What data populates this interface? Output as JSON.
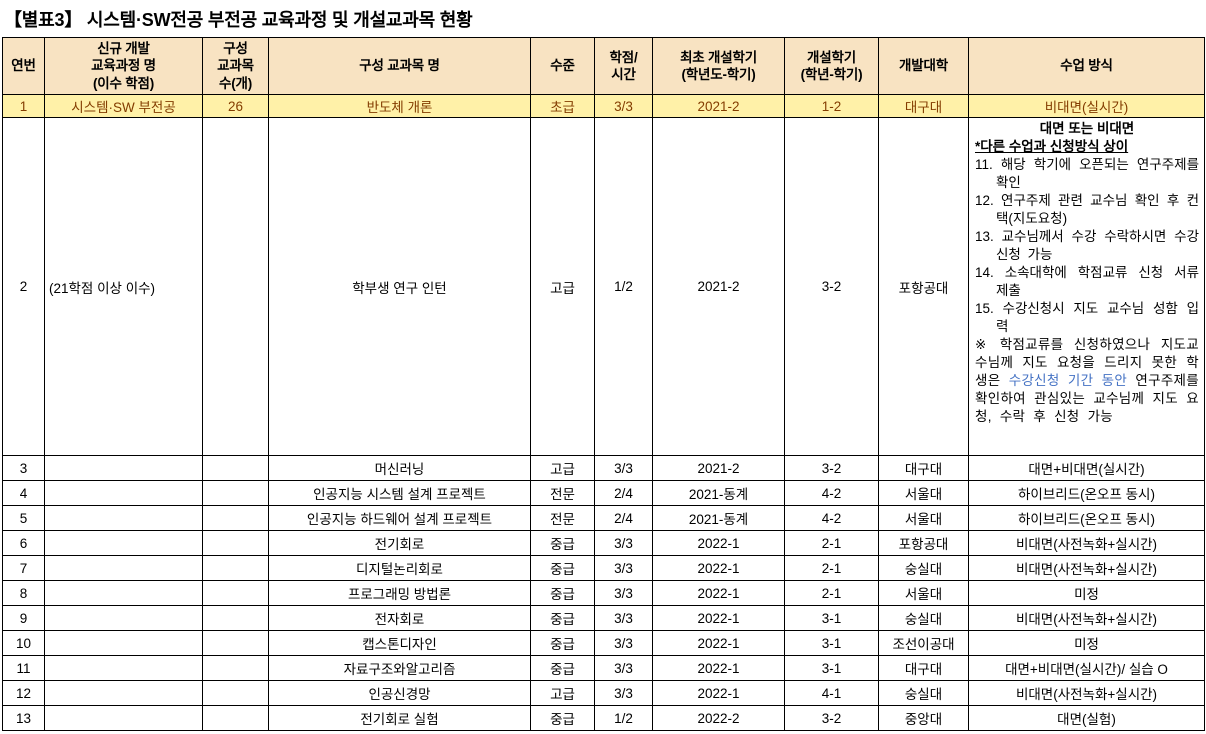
{
  "title": "【별표3】 시스템·SW전공 부전공 교육과정 및 개설교과목 현황",
  "colors": {
    "header_bg": "#F8E3C2",
    "highlight_bg": "#FFF1A8",
    "highlight_text": "#833C00",
    "accent_blue": "#4472C4"
  },
  "table": {
    "headers": [
      "연번",
      "신규 개발\n교육과정 명\n(이수 학점)",
      "구성\n교과목\n수(개)",
      "구성 교과목 명",
      "수준",
      "학점/\n시간",
      "최초 개설학기\n(학년도-학기)",
      "개설학기\n(학년-학기)",
      "개발대학",
      "수업 방식"
    ],
    "rows": [
      {
        "num": "1",
        "curriculum": "시스템·SW 부전공",
        "count": "26",
        "subject": "반도체 개론",
        "level": "초급",
        "credit": "3/3",
        "first_sem": "2021-2",
        "sem": "1-2",
        "univ": "대구대",
        "method": "비대면(실시간)",
        "highlight": true
      },
      {
        "num": "2",
        "curriculum": "(21학점 이상 이수)",
        "count": "",
        "subject": "학부생 연구 인턴",
        "level": "고급",
        "credit": "1/2",
        "first_sem": "2021-2",
        "sem": "3-2",
        "univ": "포항공대",
        "method": {
          "lines": [
            {
              "style": "bc",
              "text": "대면 또는 비대면"
            },
            {
              "style": "bu",
              "text": "*다른 수업과 신청방식 상이"
            },
            {
              "style": "num",
              "num": "11.",
              "text": "해당 학기에 오픈되는 연구주제를 확인"
            },
            {
              "style": "num",
              "num": "12.",
              "text": "연구주제 관련 교수님 확인 후 컨택(지도요청)"
            },
            {
              "style": "num",
              "num": "13.",
              "text": "교수님께서 수강 수락하시면 수강신청 가능"
            },
            {
              "style": "num",
              "num": "14.",
              "text": "소속대학에 학점교류 신청 서류 제출"
            },
            {
              "style": "num",
              "num": "15.",
              "text": "수강신청시 지도 교수님 성함 입력"
            },
            {
              "style": "note",
              "segments": [
                {
                  "text": "※ 학점교류를 신청하였으나 지도교수님께 지도 요청을 드리지 못한 학생은 "
                },
                {
                  "text": "수강신청 기간 동안",
                  "color": "#4472C4"
                },
                {
                  "text": " 연구주제를 확인하여 관심있는 교수님께 지도 요청, 수락 후 신청 가능"
                }
              ]
            }
          ]
        }
      },
      {
        "num": "3",
        "curriculum": "",
        "count": "",
        "subject": "머신러닝",
        "level": "고급",
        "credit": "3/3",
        "first_sem": "2021-2",
        "sem": "3-2",
        "univ": "대구대",
        "method": "대면+비대면(실시간)"
      },
      {
        "num": "4",
        "curriculum": "",
        "count": "",
        "subject": "인공지능 시스템 설계 프로젝트",
        "level": "전문",
        "credit": "2/4",
        "first_sem": "2021-동계",
        "sem": "4-2",
        "univ": "서울대",
        "method": "하이브리드(온오프 동시)"
      },
      {
        "num": "5",
        "curriculum": "",
        "count": "",
        "subject": "인공지능 하드웨어 설계 프로젝트",
        "level": "전문",
        "credit": "2/4",
        "first_sem": "2021-동계",
        "sem": "4-2",
        "univ": "서울대",
        "method": "하이브리드(온오프 동시)"
      },
      {
        "num": "6",
        "curriculum": "",
        "count": "",
        "subject": "전기회로",
        "level": "중급",
        "credit": "3/3",
        "first_sem": "2022-1",
        "sem": "2-1",
        "univ": "포항공대",
        "method": "비대면(사전녹화+실시간)"
      },
      {
        "num": "7",
        "curriculum": "",
        "count": "",
        "subject": "디지털논리회로",
        "level": "중급",
        "credit": "3/3",
        "first_sem": "2022-1",
        "sem": "2-1",
        "univ": "숭실대",
        "method": "비대면(사전녹화+실시간)"
      },
      {
        "num": "8",
        "curriculum": "",
        "count": "",
        "subject": "프로그래밍 방법론",
        "level": "중급",
        "credit": "3/3",
        "first_sem": "2022-1",
        "sem": "2-1",
        "univ": "서울대",
        "method": "미정"
      },
      {
        "num": "9",
        "curriculum": "",
        "count": "",
        "subject": "전자회로",
        "level": "중급",
        "credit": "3/3",
        "first_sem": "2022-1",
        "sem": "3-1",
        "univ": "숭실대",
        "method": "비대면(사전녹화+실시간)"
      },
      {
        "num": "10",
        "curriculum": "",
        "count": "",
        "subject": "캡스톤디자인",
        "level": "중급",
        "credit": "3/3",
        "first_sem": "2022-1",
        "sem": "3-1",
        "univ": "조선이공대",
        "method": "미정"
      },
      {
        "num": "11",
        "curriculum": "",
        "count": "",
        "subject": "자료구조와알고리즘",
        "level": "중급",
        "credit": "3/3",
        "first_sem": "2022-1",
        "sem": "3-1",
        "univ": "대구대",
        "method": "대면+비대면(실시간)/ 실습 O"
      },
      {
        "num": "12",
        "curriculum": "",
        "count": "",
        "subject": "인공신경망",
        "level": "고급",
        "credit": "3/3",
        "first_sem": "2022-1",
        "sem": "4-1",
        "univ": "숭실대",
        "method": "비대면(사전녹화+실시간)"
      },
      {
        "num": "13",
        "curriculum": "",
        "count": "",
        "subject": "전기회로 실험",
        "level": "중급",
        "credit": "1/2",
        "first_sem": "2022-2",
        "sem": "3-2",
        "univ": "중앙대",
        "method": "대면(실험)"
      }
    ]
  }
}
